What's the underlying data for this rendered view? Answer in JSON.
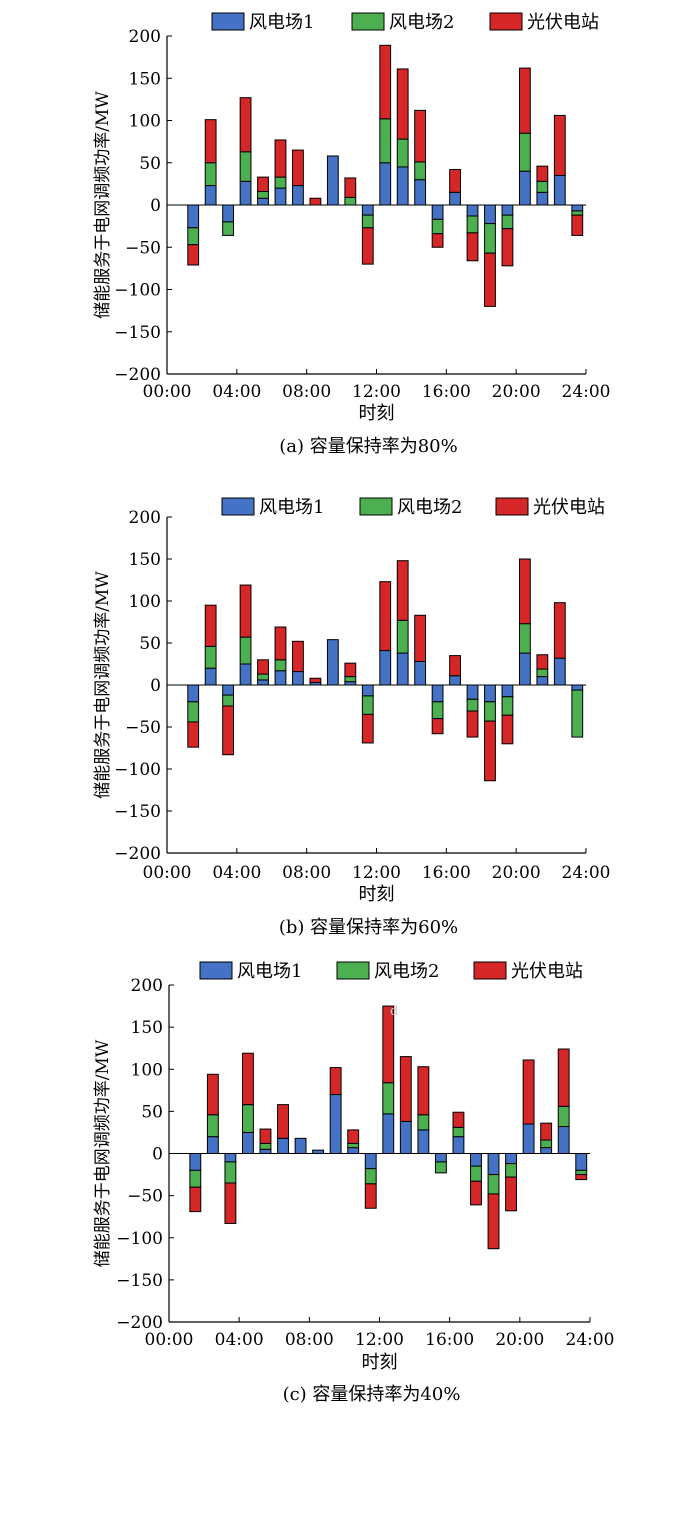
{
  "legend_labels": [
    "风电场1",
    "风电场2",
    "光伏电站"
  ],
  "colors": {
    "series": [
      "#4472c4",
      "#4caf50",
      "#d62728"
    ],
    "edge": "#000000",
    "axis": "#000000"
  },
  "chart_data": [
    {
      "type": "bar",
      "stacked": true,
      "caption": "(a) 容量保持率为80%",
      "xlabel": "时刻",
      "ylabel": "储能服务于电网调频功率/MW",
      "ylim": [
        -200,
        200
      ],
      "yticks": [
        200,
        150,
        100,
        50,
        0,
        -50,
        -100,
        -150,
        -200
      ],
      "xlim": [
        0,
        24
      ],
      "xticks": [
        "00:00",
        "04:00",
        "08:00",
        "12:00",
        "16:00",
        "20:00",
        "24:00"
      ],
      "grid": false,
      "legend_position": "top",
      "x": [
        1.5,
        2.5,
        3.5,
        4.5,
        5.5,
        6.5,
        7.5,
        8.5,
        9.5,
        10.5,
        11.5,
        12.5,
        13.5,
        14.5,
        15.5,
        16.5,
        17.5,
        18.5,
        19.5,
        20.5,
        21.5,
        22.5,
        23.5
      ],
      "series": [
        {
          "name": "风电场1",
          "values": [
            -27,
            23,
            -20,
            28,
            8,
            20,
            23,
            0,
            58,
            0,
            -12,
            50,
            45,
            30,
            -17,
            15,
            -13,
            -22,
            -12,
            40,
            15,
            35,
            -7
          ]
        },
        {
          "name": "风电场2",
          "values": [
            -20,
            27,
            -16,
            35,
            8,
            13,
            0,
            0,
            0,
            9,
            -15,
            52,
            33,
            21,
            -17,
            0,
            -20,
            -35,
            -16,
            45,
            13,
            0,
            -5
          ]
        },
        {
          "name": "光伏电站",
          "values": [
            -24,
            51,
            0,
            64,
            17,
            44,
            42,
            8,
            0,
            23,
            -43,
            87,
            83,
            61,
            -16,
            27,
            -33,
            -63,
            -44,
            77,
            18,
            71,
            -24
          ]
        }
      ]
    },
    {
      "type": "bar",
      "stacked": true,
      "caption": "(b) 容量保持率为60%",
      "xlabel": "时刻",
      "ylabel": "储能服务于电网调频功率/MW",
      "ylim": [
        -200,
        200
      ],
      "yticks": [
        200,
        150,
        100,
        50,
        0,
        -50,
        -100,
        -150,
        -200
      ],
      "xlim": [
        0,
        24
      ],
      "xticks": [
        "00:00",
        "04:00",
        "08:00",
        "12:00",
        "16:00",
        "20:00",
        "24:00"
      ],
      "grid": false,
      "legend_position": "top",
      "x": [
        1.5,
        2.5,
        3.5,
        4.5,
        5.5,
        6.5,
        7.5,
        8.5,
        9.5,
        10.5,
        11.5,
        12.5,
        13.5,
        14.5,
        15.5,
        16.5,
        17.5,
        18.5,
        19.5,
        20.5,
        21.5,
        22.5,
        23.5
      ],
      "series": [
        {
          "name": "风电场1",
          "values": [
            -20,
            20,
            -12,
            25,
            6,
            17,
            16,
            3,
            54,
            4,
            -13,
            41,
            38,
            28,
            -20,
            11,
            -17,
            -20,
            -14,
            38,
            10,
            32,
            -6
          ]
        },
        {
          "name": "风电场2",
          "values": [
            -24,
            26,
            -13,
            32,
            7,
            13,
            0,
            0,
            0,
            6,
            -22,
            0,
            39,
            0,
            -20,
            0,
            -14,
            -23,
            -22,
            35,
            9,
            0,
            -56
          ]
        },
        {
          "name": "光伏电站",
          "values": [
            -30,
            49,
            -58,
            62,
            17,
            39,
            36,
            5,
            0,
            16,
            -34,
            82,
            71,
            55,
            -18,
            24,
            -31,
            -71,
            -34,
            77,
            17,
            66,
            0
          ]
        }
      ]
    },
    {
      "type": "bar",
      "stacked": true,
      "caption": "(c) 容量保持率为40%",
      "xlabel": "时刻",
      "ylabel": "储能服务于电网调频功率/MW",
      "ylim": [
        -200,
        200
      ],
      "yticks": [
        200,
        150,
        100,
        50,
        0,
        -50,
        -100,
        -150,
        -200
      ],
      "xlim": [
        0,
        24
      ],
      "xticks": [
        "00:00",
        "04:00",
        "08:00",
        "12:00",
        "16:00",
        "20:00",
        "24:00"
      ],
      "grid": false,
      "legend_position": "top",
      "annotation": "d",
      "x": [
        1.5,
        2.5,
        3.5,
        4.5,
        5.5,
        6.5,
        7.5,
        8.5,
        9.5,
        10.5,
        11.5,
        12.5,
        13.5,
        14.5,
        15.5,
        16.5,
        17.5,
        18.5,
        19.5,
        20.5,
        21.5,
        22.5,
        23.5
      ],
      "series": [
        {
          "name": "风电场1",
          "values": [
            -20,
            20,
            -10,
            25,
            5,
            18,
            18,
            4,
            70,
            7,
            -18,
            47,
            38,
            28,
            -10,
            20,
            -15,
            -25,
            -12,
            35,
            7,
            32,
            -20
          ]
        },
        {
          "name": "风电场2",
          "values": [
            -20,
            26,
            -25,
            33,
            7,
            0,
            0,
            0,
            0,
            5,
            -18,
            37,
            0,
            18,
            -13,
            11,
            -18,
            -23,
            -16,
            0,
            9,
            24,
            -5
          ]
        },
        {
          "name": "光伏电站",
          "values": [
            -29,
            48,
            -48,
            61,
            17,
            40,
            0,
            0,
            32,
            16,
            -29,
            91,
            77,
            57,
            0,
            18,
            -28,
            -65,
            -40,
            76,
            20,
            68,
            -6
          ]
        }
      ]
    }
  ]
}
